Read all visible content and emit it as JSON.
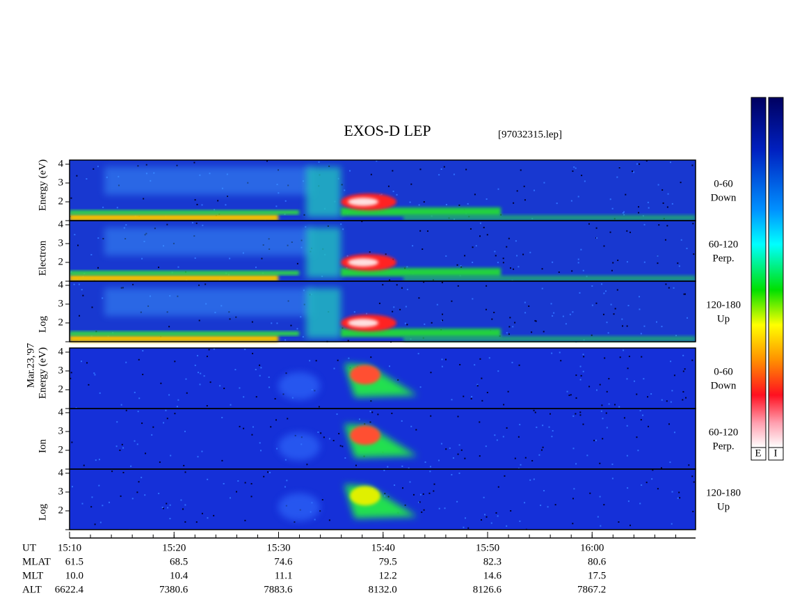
{
  "chart_data": {
    "type": "spectrogram",
    "title": "EXOS-D LEP",
    "subtitle": "[97032315.lep]",
    "date_label": "Mar.23,'97",
    "groups": [
      {
        "axis_label": [
          "Log",
          "Electron",
          "Energy (eV)"
        ],
        "panels": [
          {
            "name": [
              "0-60",
              "Down"
            ]
          },
          {
            "name": [
              "60-120",
              "Perp."
            ]
          },
          {
            "name": [
              "120-180",
              "Up"
            ]
          }
        ]
      },
      {
        "axis_label": [
          "Log",
          "Ion",
          "Energy (eV)"
        ],
        "panels": [
          {
            "name": [
              "0-60",
              "Down"
            ]
          },
          {
            "name": [
              "60-120",
              "Perp."
            ]
          },
          {
            "name": [
              "120-180",
              "Up"
            ]
          }
        ]
      }
    ],
    "ylim": [
      1,
      4.22
    ],
    "yticks": [
      2,
      3,
      4
    ],
    "xlim": [
      910,
      969.9
    ],
    "xticks": [
      {
        "value": 910,
        "label": "15:10"
      },
      {
        "value": 920,
        "label": "15:20"
      },
      {
        "value": 930,
        "label": "15:30"
      },
      {
        "value": 940,
        "label": "15:40"
      },
      {
        "value": 950,
        "label": "15:50"
      },
      {
        "value": 960,
        "label": "16:00"
      }
    ],
    "ephemeris": [
      {
        "name": "UT"
      },
      {
        "name": "MLAT",
        "values": [
          "61.5",
          "68.5",
          "74.6",
          "79.5",
          "82.3",
          "80.6"
        ]
      },
      {
        "name": "MLT",
        "values": [
          "10.0",
          "10.4",
          "11.1",
          "12.2",
          "14.6",
          "17.5"
        ]
      },
      {
        "name": "ALT",
        "values": [
          "6622.4",
          "7380.6",
          "7883.6",
          "8132.0",
          "8126.6",
          "7867.2"
        ]
      }
    ],
    "colorbar_labels": [
      "E",
      "I"
    ]
  }
}
